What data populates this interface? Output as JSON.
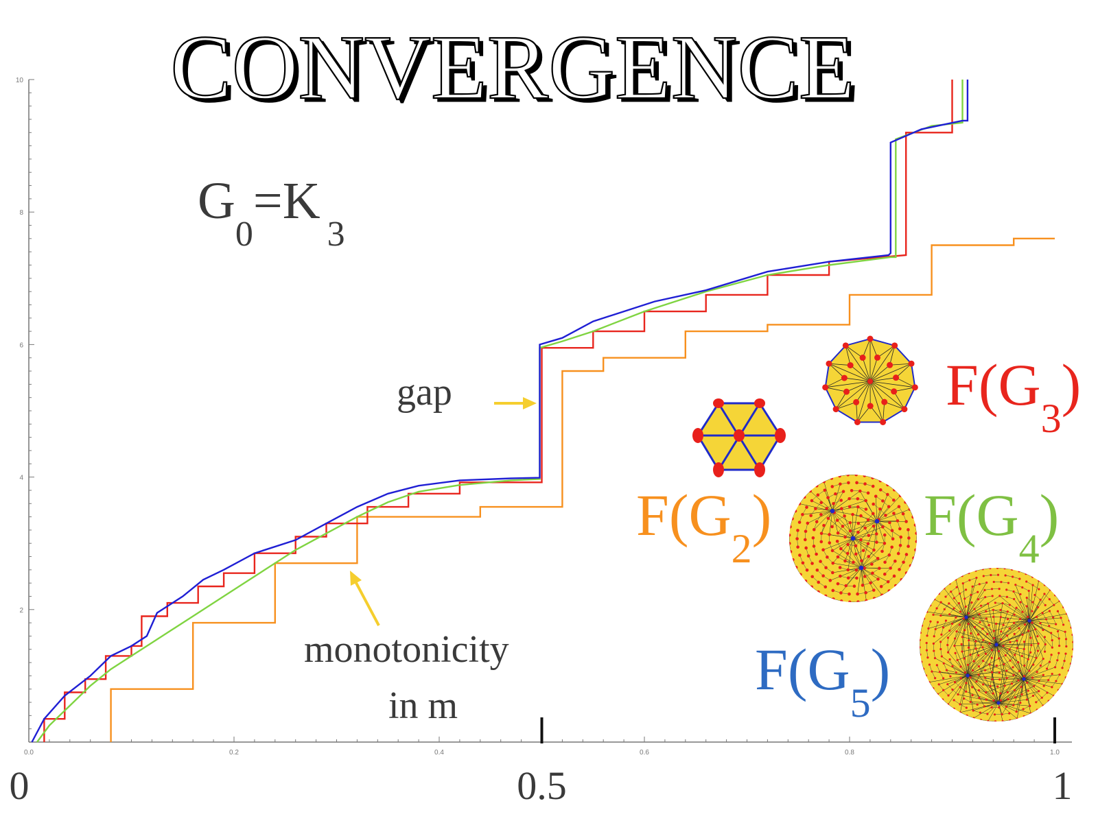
{
  "chart_data": {
    "type": "line",
    "title": "CONVERGENCE",
    "subtitle": "G0=K3",
    "xlim": [
      0,
      1
    ],
    "ylim": [
      0,
      10
    ],
    "x_ticks": [
      "0.0",
      "0.2",
      "0.4",
      "0.6",
      "0.8",
      "1.0"
    ],
    "y_ticks": [
      "2",
      "4",
      "6",
      "8",
      "10"
    ],
    "x_big_ticks": [
      "0",
      "0.5",
      "1"
    ],
    "grid": false,
    "series": [
      {
        "name": "F(G2)",
        "color": "#F7901E",
        "points": [
          [
            0.08,
            0
          ],
          [
            0.08,
            0.8
          ],
          [
            0.16,
            0.8
          ],
          [
            0.16,
            1.8
          ],
          [
            0.24,
            1.8
          ],
          [
            0.24,
            2.7
          ],
          [
            0.32,
            2.7
          ],
          [
            0.32,
            3.4
          ],
          [
            0.44,
            3.4
          ],
          [
            0.44,
            3.55
          ],
          [
            0.52,
            3.55
          ],
          [
            0.52,
            5.6
          ],
          [
            0.56,
            5.6
          ],
          [
            0.56,
            5.8
          ],
          [
            0.64,
            5.8
          ],
          [
            0.64,
            6.2
          ],
          [
            0.72,
            6.2
          ],
          [
            0.72,
            6.3
          ],
          [
            0.8,
            6.3
          ],
          [
            0.8,
            6.75
          ],
          [
            0.88,
            6.75
          ],
          [
            0.88,
            7.5
          ],
          [
            0.96,
            7.5
          ],
          [
            0.96,
            7.6
          ],
          [
            1.0,
            7.6
          ]
        ]
      },
      {
        "name": "F(G3)",
        "color": "#E8251D",
        "points": [
          [
            0.015,
            0
          ],
          [
            0.015,
            0.35
          ],
          [
            0.035,
            0.35
          ],
          [
            0.035,
            0.75
          ],
          [
            0.055,
            0.75
          ],
          [
            0.055,
            0.95
          ],
          [
            0.075,
            0.95
          ],
          [
            0.075,
            1.3
          ],
          [
            0.1,
            1.3
          ],
          [
            0.1,
            1.45
          ],
          [
            0.11,
            1.45
          ],
          [
            0.11,
            1.9
          ],
          [
            0.135,
            1.9
          ],
          [
            0.135,
            2.1
          ],
          [
            0.165,
            2.1
          ],
          [
            0.165,
            2.35
          ],
          [
            0.19,
            2.35
          ],
          [
            0.19,
            2.55
          ],
          [
            0.22,
            2.55
          ],
          [
            0.22,
            2.85
          ],
          [
            0.26,
            2.85
          ],
          [
            0.26,
            3.1
          ],
          [
            0.29,
            3.1
          ],
          [
            0.29,
            3.3
          ],
          [
            0.33,
            3.3
          ],
          [
            0.33,
            3.55
          ],
          [
            0.37,
            3.55
          ],
          [
            0.37,
            3.75
          ],
          [
            0.42,
            3.75
          ],
          [
            0.42,
            3.92
          ],
          [
            0.5,
            3.92
          ],
          [
            0.5,
            5.95
          ],
          [
            0.55,
            5.95
          ],
          [
            0.55,
            6.2
          ],
          [
            0.6,
            6.2
          ],
          [
            0.6,
            6.5
          ],
          [
            0.66,
            6.5
          ],
          [
            0.66,
            6.75
          ],
          [
            0.72,
            6.75
          ],
          [
            0.72,
            7.05
          ],
          [
            0.78,
            7.05
          ],
          [
            0.78,
            7.25
          ],
          [
            0.855,
            7.35
          ],
          [
            0.855,
            9.2
          ],
          [
            0.9,
            9.2
          ],
          [
            0.9,
            10
          ]
        ]
      },
      {
        "name": "F(G4)",
        "color": "#7FD441",
        "points": [
          [
            0.008,
            0
          ],
          [
            0.02,
            0.25
          ],
          [
            0.04,
            0.55
          ],
          [
            0.06,
            0.85
          ],
          [
            0.08,
            1.1
          ],
          [
            0.1,
            1.3
          ],
          [
            0.12,
            1.5
          ],
          [
            0.14,
            1.7
          ],
          [
            0.16,
            1.9
          ],
          [
            0.18,
            2.1
          ],
          [
            0.2,
            2.3
          ],
          [
            0.23,
            2.6
          ],
          [
            0.26,
            2.9
          ],
          [
            0.29,
            3.15
          ],
          [
            0.32,
            3.4
          ],
          [
            0.35,
            3.62
          ],
          [
            0.38,
            3.78
          ],
          [
            0.42,
            3.88
          ],
          [
            0.47,
            3.95
          ],
          [
            0.498,
            3.97
          ],
          [
            0.498,
            5.95
          ],
          [
            0.52,
            6.05
          ],
          [
            0.55,
            6.2
          ],
          [
            0.6,
            6.5
          ],
          [
            0.66,
            6.8
          ],
          [
            0.72,
            7.05
          ],
          [
            0.78,
            7.2
          ],
          [
            0.84,
            7.32
          ],
          [
            0.845,
            7.32
          ],
          [
            0.845,
            9.1
          ],
          [
            0.88,
            9.3
          ],
          [
            0.91,
            9.35
          ],
          [
            0.91,
            10
          ]
        ]
      },
      {
        "name": "F(G5)",
        "color": "#1F1FD4",
        "points": [
          [
            0.003,
            0
          ],
          [
            0.015,
            0.35
          ],
          [
            0.035,
            0.7
          ],
          [
            0.06,
            1.0
          ],
          [
            0.08,
            1.3
          ],
          [
            0.1,
            1.45
          ],
          [
            0.115,
            1.6
          ],
          [
            0.125,
            1.95
          ],
          [
            0.15,
            2.2
          ],
          [
            0.17,
            2.45
          ],
          [
            0.19,
            2.6
          ],
          [
            0.22,
            2.85
          ],
          [
            0.26,
            3.05
          ],
          [
            0.29,
            3.3
          ],
          [
            0.32,
            3.55
          ],
          [
            0.35,
            3.75
          ],
          [
            0.38,
            3.87
          ],
          [
            0.42,
            3.95
          ],
          [
            0.47,
            3.98
          ],
          [
            0.498,
            3.99
          ],
          [
            0.498,
            6.0
          ],
          [
            0.52,
            6.1
          ],
          [
            0.55,
            6.35
          ],
          [
            0.58,
            6.5
          ],
          [
            0.61,
            6.65
          ],
          [
            0.66,
            6.82
          ],
          [
            0.72,
            7.1
          ],
          [
            0.78,
            7.25
          ],
          [
            0.838,
            7.35
          ],
          [
            0.84,
            7.38
          ],
          [
            0.84,
            9.05
          ],
          [
            0.87,
            9.25
          ],
          [
            0.91,
            9.38
          ],
          [
            0.915,
            9.38
          ],
          [
            0.915,
            10
          ]
        ]
      }
    ],
    "annotations": [
      {
        "text": "gap",
        "color": "#3a3a3a"
      },
      {
        "text": "monotonicity",
        "color": "#3a3a3a"
      },
      {
        "text": "in m",
        "color": "#3a3a3a"
      }
    ],
    "arrow_color": "#F5CE2E",
    "insets": [
      {
        "label": "F(G",
        "sub": "2",
        "close": ")",
        "color": "#F7901E"
      },
      {
        "label": "F(G",
        "sub": "3",
        "close": ")",
        "color": "#E8251D"
      },
      {
        "label": "F(G",
        "sub": "4",
        "close": ")",
        "color": "#7FC043"
      },
      {
        "label": "F(G",
        "sub": "5",
        "close": ")",
        "color": "#2E6BC2"
      }
    ]
  }
}
